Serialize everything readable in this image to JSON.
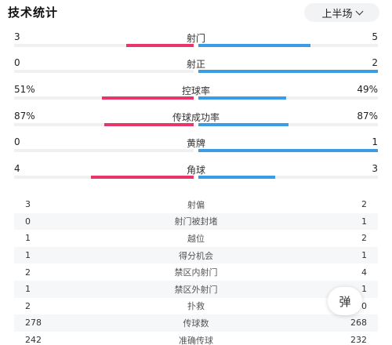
{
  "header": {
    "title": "技术统计",
    "period": "上半场"
  },
  "bar_stats": [
    {
      "name": "射门",
      "home": "3",
      "away": "5",
      "home_share": 0.375,
      "away_share": 0.625
    },
    {
      "name": "射正",
      "home": "0",
      "away": "2",
      "home_share": 0.0,
      "away_share": 1.0
    },
    {
      "name": "控球率",
      "home": "51%",
      "away": "49%",
      "home_share": 0.51,
      "away_share": 0.49
    },
    {
      "name": "传球成功率",
      "home": "87%",
      "away": "87%",
      "home_share": 0.5,
      "away_share": 0.5
    },
    {
      "name": "黄牌",
      "home": "0",
      "away": "1",
      "home_share": 0.0,
      "away_share": 1.0
    },
    {
      "name": "角球",
      "home": "4",
      "away": "3",
      "home_share": 0.571,
      "away_share": 0.429
    }
  ],
  "table_stats": [
    {
      "name": "射偏",
      "home": "3",
      "away": "2"
    },
    {
      "name": "射门被封堵",
      "home": "0",
      "away": "1"
    },
    {
      "name": "越位",
      "home": "1",
      "away": "2"
    },
    {
      "name": "得分机会",
      "home": "1",
      "away": "1"
    },
    {
      "name": "禁区内射门",
      "home": "2",
      "away": "4"
    },
    {
      "name": "禁区外射门",
      "home": "1",
      "away": "1"
    },
    {
      "name": "扑救",
      "home": "2",
      "away": "0"
    },
    {
      "name": "传球数",
      "home": "278",
      "away": "268"
    },
    {
      "name": "准确传球",
      "home": "242",
      "away": "232"
    }
  ],
  "danmaku_button": "弹",
  "colors": {
    "home": "#e8356a",
    "away": "#3a9be6"
  }
}
